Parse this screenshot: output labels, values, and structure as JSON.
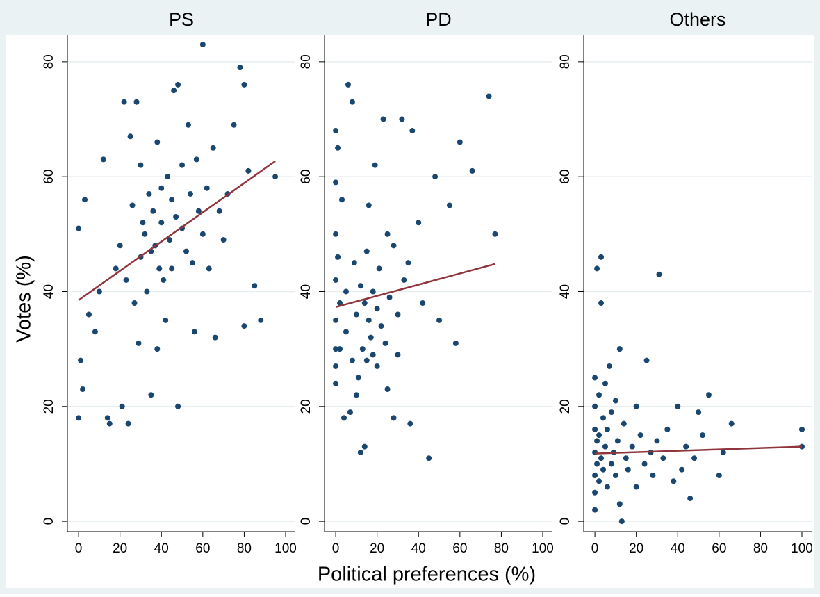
{
  "chart_data": [
    {
      "type": "scatter",
      "title": "PS",
      "ylabel": "Votes (%)",
      "color": "#1a476f",
      "x": [
        0,
        0,
        1,
        2,
        3,
        5,
        8,
        10,
        12,
        14,
        15,
        18,
        20,
        21,
        22,
        23,
        24,
        25,
        26,
        27,
        28,
        29,
        30,
        30,
        31,
        32,
        33,
        34,
        35,
        35,
        36,
        37,
        38,
        38,
        39,
        40,
        40,
        41,
        42,
        43,
        44,
        45,
        45,
        46,
        47,
        48,
        48,
        50,
        50,
        52,
        53,
        54,
        55,
        56,
        57,
        58,
        60,
        60,
        62,
        63,
        65,
        66,
        68,
        70,
        72,
        75,
        78,
        80,
        80,
        82,
        85,
        88,
        95
      ],
      "y": [
        18,
        51,
        28,
        23,
        56,
        36,
        33,
        40,
        63,
        18,
        17,
        44,
        48,
        20,
        73,
        42,
        17,
        67,
        55,
        38,
        73,
        31,
        46,
        62,
        52,
        50,
        40,
        57,
        47,
        22,
        54,
        48,
        66,
        30,
        44,
        52,
        58,
        42,
        35,
        60,
        49,
        56,
        44,
        75,
        53,
        76,
        20,
        51,
        62,
        47,
        69,
        57,
        45,
        33,
        63,
        54,
        50,
        83,
        58,
        44,
        65,
        32,
        54,
        49,
        57,
        69,
        79,
        76,
        34,
        61,
        41,
        35,
        60
      ],
      "fit": {
        "x": [
          0,
          95
        ],
        "y": [
          38.5,
          62.7
        ],
        "color": "#90353b"
      },
      "xlim": [
        -5.4,
        104.7
      ],
      "ylim": [
        -1.8,
        84.7
      ],
      "xticks": [
        0,
        20,
        40,
        60,
        80,
        100
      ],
      "yticks": [
        0,
        20,
        40,
        60,
        80
      ],
      "grid": true
    },
    {
      "type": "scatter",
      "title": "PD",
      "xlabel": "Political preferences (%)",
      "color": "#1a476f",
      "x": [
        0,
        0,
        0,
        0,
        0,
        0,
        0,
        0,
        1,
        1,
        2,
        2,
        3,
        4,
        5,
        5,
        6,
        7,
        8,
        8,
        9,
        10,
        10,
        11,
        12,
        12,
        13,
        14,
        14,
        15,
        15,
        16,
        16,
        17,
        18,
        18,
        19,
        20,
        20,
        21,
        22,
        23,
        24,
        25,
        25,
        26,
        28,
        28,
        30,
        30,
        32,
        33,
        35,
        36,
        37,
        40,
        42,
        45,
        48,
        50,
        55,
        58,
        60,
        66,
        74,
        77
      ],
      "y": [
        68,
        59,
        50,
        42,
        35,
        30,
        27,
        24,
        65,
        46,
        38,
        30,
        56,
        18,
        40,
        33,
        76,
        19,
        73,
        28,
        45,
        36,
        22,
        25,
        12,
        41,
        30,
        13,
        38,
        47,
        28,
        35,
        55,
        32,
        40,
        29,
        62,
        37,
        27,
        44,
        34,
        70,
        31,
        50,
        23,
        39,
        18,
        48,
        36,
        29,
        70,
        42,
        45,
        17,
        68,
        52,
        38,
        11,
        60,
        35,
        55,
        31,
        66,
        61,
        74,
        50
      ],
      "fit": {
        "x": [
          0,
          77
        ],
        "y": [
          37.3,
          44.8
        ],
        "color": "#90353b"
      },
      "xlim": [
        -5.4,
        104.7
      ],
      "ylim": [
        -1.8,
        84.7
      ],
      "xticks": [
        0,
        20,
        40,
        60,
        80,
        100
      ],
      "yticks": [
        0,
        20,
        40,
        60,
        80
      ],
      "grid": true
    },
    {
      "type": "scatter",
      "title": "Others",
      "color": "#1a476f",
      "x": [
        0,
        0,
        0,
        0,
        0,
        0,
        0,
        1,
        1,
        1,
        2,
        2,
        2,
        3,
        3,
        3,
        4,
        4,
        5,
        5,
        6,
        6,
        7,
        8,
        8,
        9,
        10,
        10,
        11,
        12,
        12,
        13,
        14,
        15,
        16,
        18,
        20,
        20,
        22,
        24,
        25,
        27,
        28,
        30,
        31,
        33,
        35,
        38,
        40,
        42,
        44,
        46,
        48,
        50,
        52,
        55,
        60,
        62,
        66,
        100,
        100
      ],
      "y": [
        2,
        8,
        12,
        16,
        20,
        25,
        5,
        44,
        10,
        14,
        22,
        7,
        15,
        46,
        38,
        11,
        18,
        9,
        24,
        13,
        6,
        16,
        27,
        10,
        19,
        12,
        8,
        21,
        14,
        3,
        30,
        0,
        17,
        11,
        9,
        13,
        20,
        6,
        15,
        10,
        28,
        12,
        8,
        14,
        43,
        11,
        16,
        7,
        20,
        9,
        13,
        4,
        11,
        19,
        15,
        22,
        8,
        12,
        17,
        16,
        13
      ],
      "fit": {
        "x": [
          0,
          100
        ],
        "y": [
          11.8,
          13
        ],
        "color": "#90353b"
      },
      "xlim": [
        -5.4,
        104.7
      ],
      "ylim": [
        -1.8,
        84.7
      ],
      "xticks": [
        0,
        20,
        40,
        60,
        80,
        100
      ],
      "yticks": [
        0,
        20,
        40,
        60,
        80
      ],
      "grid": true
    }
  ]
}
